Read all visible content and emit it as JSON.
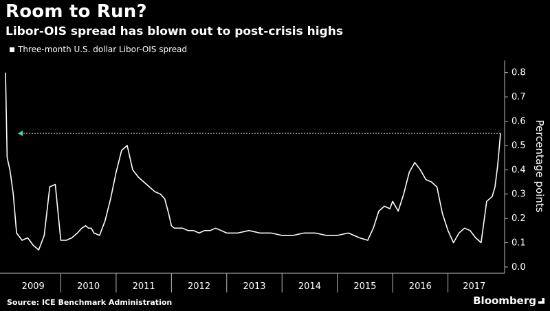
{
  "header": {
    "title": "Room to Run?",
    "subtitle": "Libor-OIS spread has blown out to post-crisis highs"
  },
  "footer": {
    "source": "Source: ICE Benchmark Administration",
    "brand": "Bloomberg"
  },
  "colors": {
    "background": "#000000",
    "line": "#ffffff",
    "reference_arrow": "#4fd0c8",
    "axis": "#bbbbbb"
  },
  "chart_data": {
    "type": "line",
    "title": "Room to Run?",
    "subtitle": "Libor-OIS spread has blown out to post-crisis highs",
    "xlabel": "",
    "ylabel": "Percentage points",
    "ylim": [
      -0.02,
      0.85
    ],
    "xlim": [
      2009.0,
      2017.95
    ],
    "yticks": [
      0.0,
      0.1,
      0.2,
      0.3,
      0.4,
      0.5,
      0.6,
      0.7,
      0.8
    ],
    "ytick_labels": [
      "0.0",
      "0.1",
      "0.2",
      "0.3",
      "0.4",
      "0.5",
      "0.6",
      "0.7",
      "0.8"
    ],
    "xtick_labels": [
      "2009",
      "2010",
      "2011",
      "2012",
      "2013",
      "2014",
      "2015",
      "2016",
      "2017"
    ],
    "grid": false,
    "legend_position": "top-left",
    "series": [
      {
        "name": "Three-month U.S. dollar Libor-OIS spread",
        "x": [
          2009.0,
          2009.03,
          2009.08,
          2009.14,
          2009.2,
          2009.3,
          2009.4,
          2009.5,
          2009.6,
          2009.7,
          2009.8,
          2009.9,
          2010.0,
          2010.1,
          2010.2,
          2010.3,
          2010.38,
          2010.45,
          2010.5,
          2010.55,
          2010.6,
          2010.7,
          2010.8,
          2010.9,
          2011.0,
          2011.1,
          2011.2,
          2011.3,
          2011.4,
          2011.5,
          2011.6,
          2011.7,
          2011.8,
          2011.88,
          2011.95,
          2012.0,
          2012.05,
          2012.1,
          2012.2,
          2012.3,
          2012.4,
          2012.5,
          2012.6,
          2012.7,
          2012.8,
          2012.9,
          2013.0,
          2013.2,
          2013.4,
          2013.6,
          2013.8,
          2014.0,
          2014.2,
          2014.4,
          2014.6,
          2014.8,
          2015.0,
          2015.2,
          2015.4,
          2015.55,
          2015.65,
          2015.75,
          2015.85,
          2015.95,
          2016.0,
          2016.1,
          2016.2,
          2016.3,
          2016.4,
          2016.5,
          2016.6,
          2016.7,
          2016.8,
          2016.9,
          2017.0,
          2017.1,
          2017.2,
          2017.3,
          2017.4,
          2017.5,
          2017.6,
          2017.7,
          2017.8,
          2017.85,
          2017.9,
          2017.95
        ],
        "values": [
          0.8,
          0.45,
          0.4,
          0.3,
          0.14,
          0.11,
          0.12,
          0.09,
          0.07,
          0.13,
          0.33,
          0.34,
          0.11,
          0.11,
          0.12,
          0.14,
          0.16,
          0.17,
          0.16,
          0.16,
          0.14,
          0.13,
          0.19,
          0.28,
          0.39,
          0.48,
          0.5,
          0.4,
          0.37,
          0.35,
          0.33,
          0.31,
          0.3,
          0.28,
          0.22,
          0.17,
          0.16,
          0.16,
          0.16,
          0.15,
          0.15,
          0.14,
          0.15,
          0.15,
          0.16,
          0.15,
          0.14,
          0.14,
          0.15,
          0.14,
          0.14,
          0.13,
          0.13,
          0.14,
          0.14,
          0.13,
          0.13,
          0.14,
          0.12,
          0.11,
          0.16,
          0.23,
          0.25,
          0.24,
          0.27,
          0.23,
          0.3,
          0.39,
          0.43,
          0.4,
          0.36,
          0.35,
          0.33,
          0.22,
          0.15,
          0.1,
          0.14,
          0.16,
          0.15,
          0.12,
          0.1,
          0.27,
          0.29,
          0.33,
          0.42,
          0.55
        ]
      }
    ],
    "reference_line": {
      "value": 0.55,
      "style": "dotted arrow pointing left"
    }
  }
}
